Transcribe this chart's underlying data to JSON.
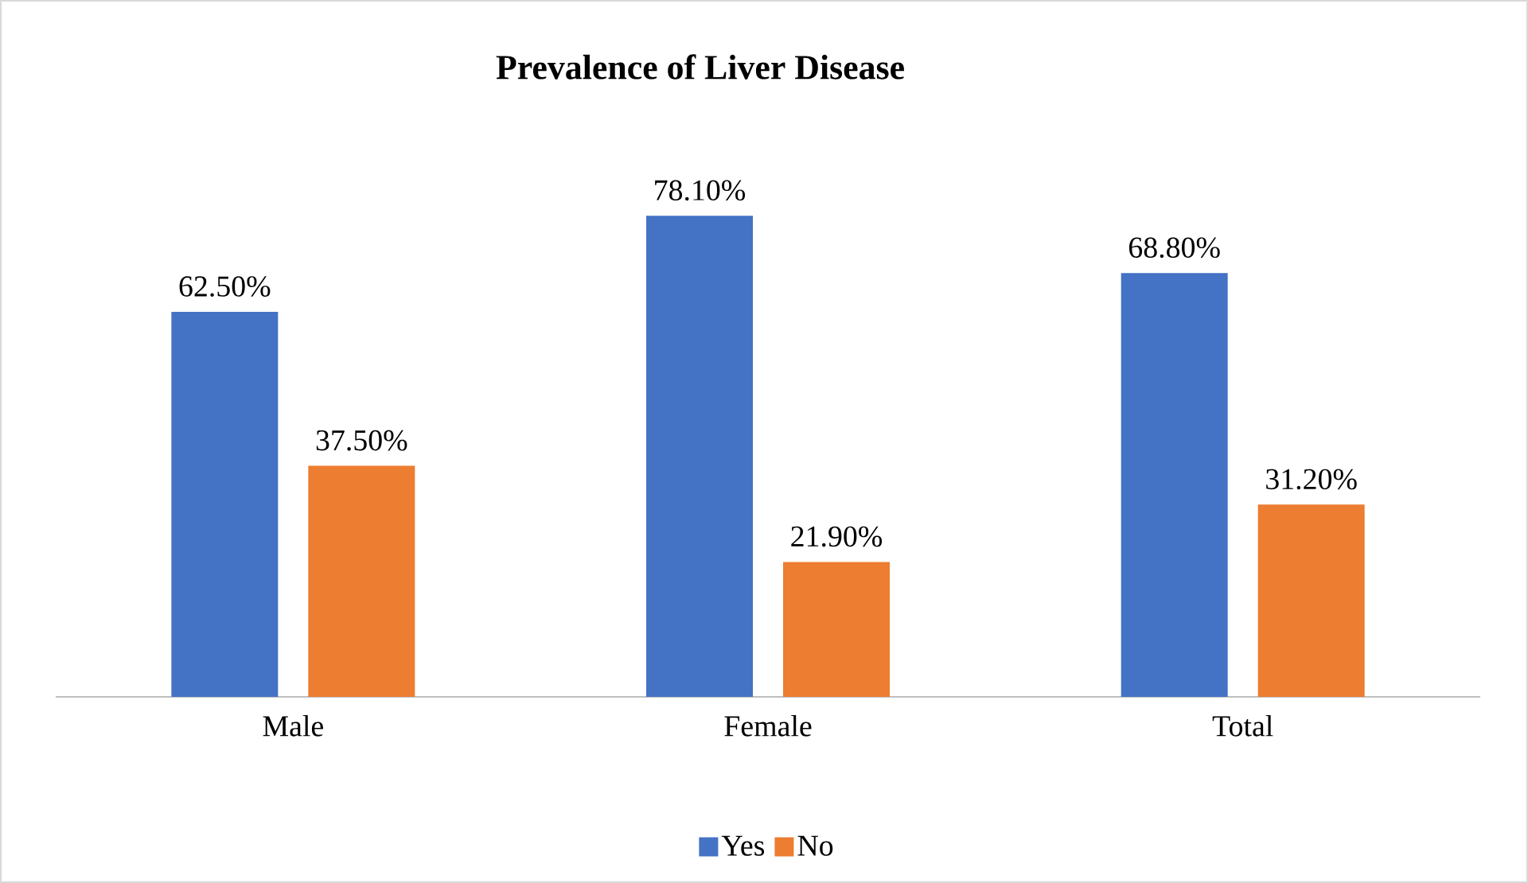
{
  "chart_data": {
    "type": "bar",
    "title": "Prevalence of Liver Disease",
    "categories": [
      "Male",
      "Female",
      "Total"
    ],
    "series": [
      {
        "name": "Yes",
        "color": "#4472c4",
        "values": [
          62.5,
          78.1,
          68.8
        ],
        "value_labels": [
          "62.50%",
          "78.10%",
          "68.80%"
        ]
      },
      {
        "name": "No",
        "color": "#ed7d31",
        "values": [
          37.5,
          21.9,
          31.2
        ],
        "value_labels": [
          "37.50%",
          "21.90%",
          "31.20%"
        ]
      }
    ],
    "legend": "bottom"
  }
}
